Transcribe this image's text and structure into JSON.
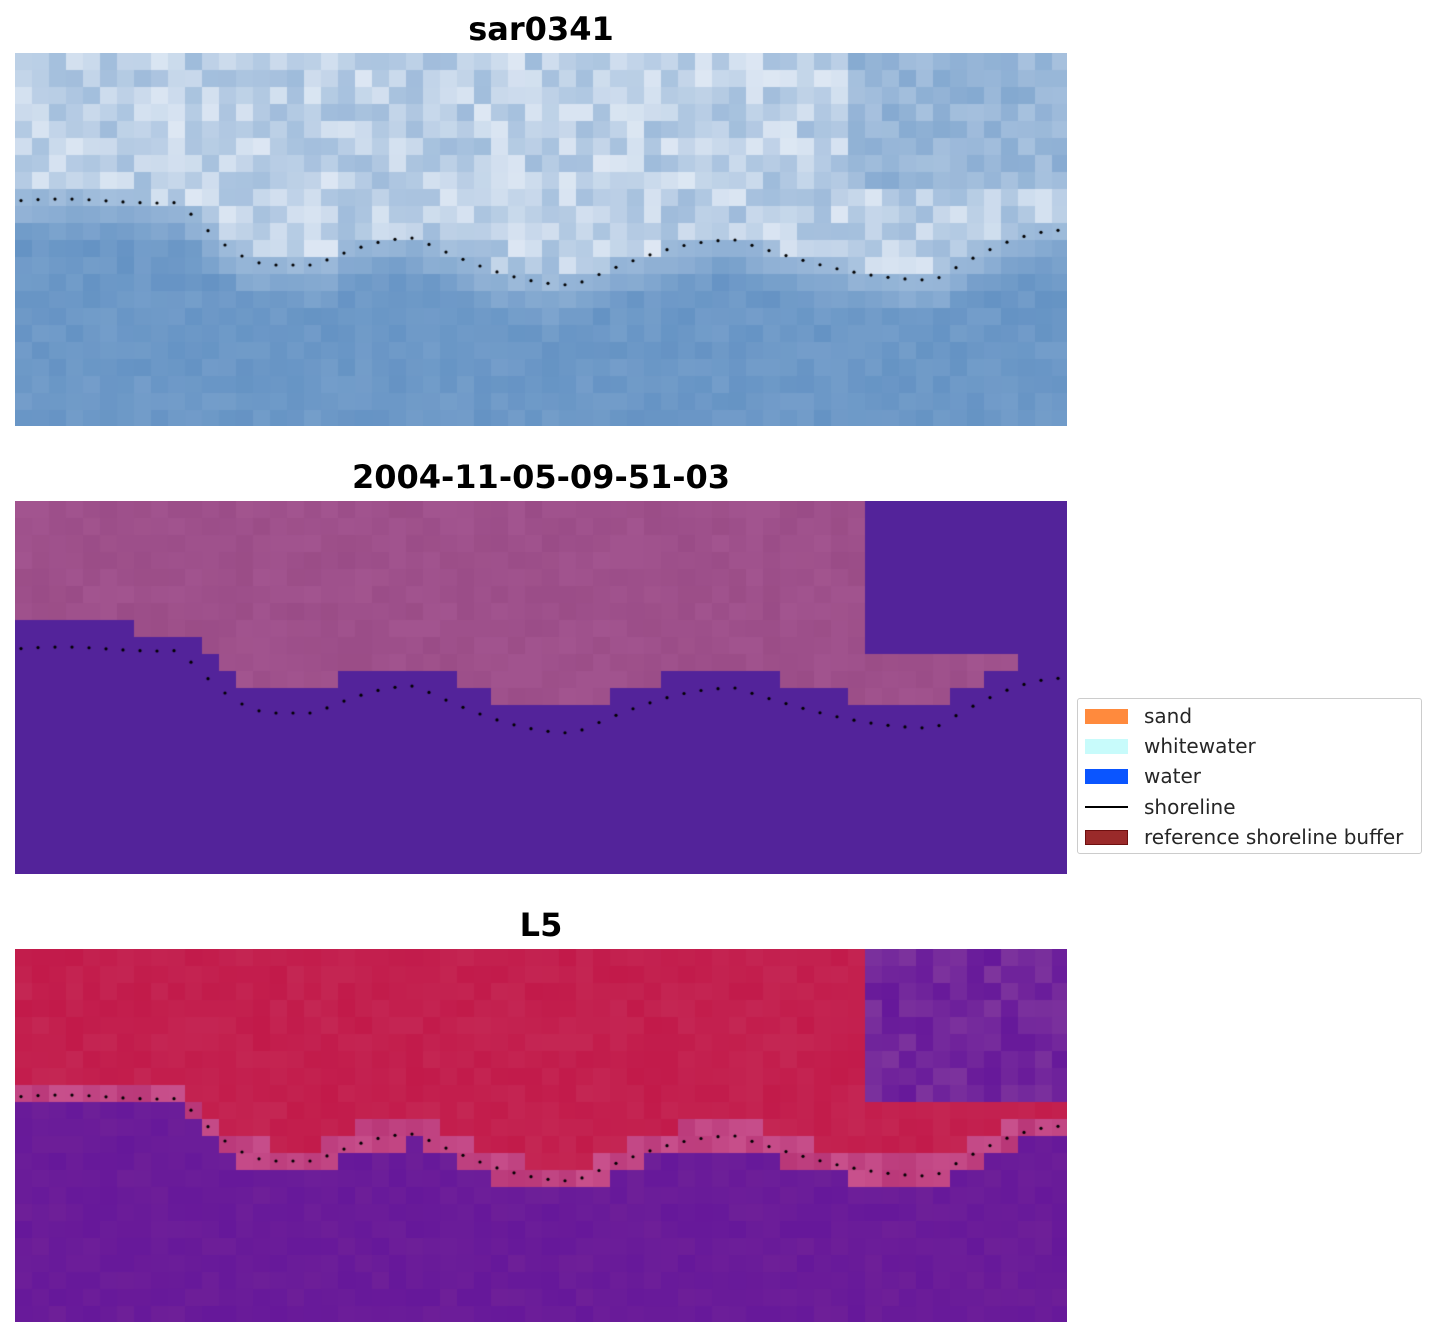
{
  "panels": [
    {
      "title": "sar0341",
      "kind": "rgb"
    },
    {
      "title": "2004-11-05-09-51-03",
      "kind": "classified"
    },
    {
      "title": "L5",
      "kind": "index"
    }
  ],
  "legend": {
    "items": [
      {
        "label": "sand",
        "color": "#ff8a3d",
        "kind": "patch"
      },
      {
        "label": "whitewater",
        "color": "#c8fbfb",
        "kind": "patch"
      },
      {
        "label": "water",
        "color": "#0a55ff",
        "kind": "patch"
      },
      {
        "label": "shoreline",
        "color": "#000000",
        "kind": "line"
      },
      {
        "label": "reference shoreline buffer",
        "color": "#9a2a2a",
        "edge": "#6e0f0f",
        "kind": "patch"
      }
    ]
  },
  "colors": {
    "classified_water": "#53239a",
    "classified_land": "#a2548f",
    "index_high": "#c21a4a",
    "index_low": "#66189a",
    "rgb_water": "#6593c4",
    "rgb_foam": "#e4ecf6"
  }
}
